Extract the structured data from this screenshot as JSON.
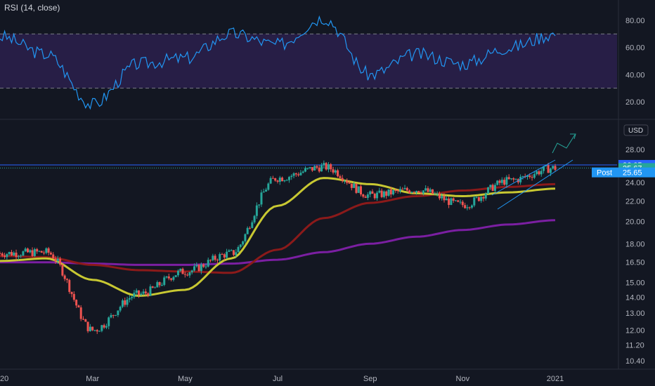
{
  "rsi_panel": {
    "title": "RSI (14, close)",
    "levels": {
      "upper": 70,
      "lower": 30
    },
    "axis_ticks": [
      "80.00",
      "60.00",
      "40.00",
      "20.00"
    ],
    "axis_values": [
      80,
      60,
      40,
      20
    ]
  },
  "price_panel": {
    "currency_badge": "USD",
    "axis_ticks": [
      "28.00",
      "26.00",
      "24.00",
      "22.00",
      "20.00",
      "18.00",
      "16.50",
      "15.00",
      "14.00",
      "13.00",
      "12.00",
      "11.20",
      "10.40"
    ],
    "axis_values": [
      28,
      26,
      24,
      22,
      20,
      18,
      16.5,
      15,
      14,
      13,
      12,
      11.2,
      10.4
    ],
    "price_badges": [
      {
        "label": "",
        "value": "26.05",
        "color": "#2962ff"
      },
      {
        "label": "",
        "value": "25.67",
        "color": "#26a69a"
      },
      {
        "label": "Post",
        "value": "25.65",
        "color": "#2196f3"
      }
    ],
    "time_labels": [
      "2020",
      "Mar",
      "May",
      "Jul",
      "Sep",
      "Nov",
      "2021"
    ]
  },
  "colors": {
    "background": "#131722",
    "up": "#26a69a",
    "down": "#ef5350",
    "ma_fast": "#c8c832",
    "ma_mid": "#8b1a1a",
    "ma_slow": "#7b1fa2",
    "rsi_line": "#2196f3",
    "rsi_band": "#2a1f4a",
    "channel": "#2196f3"
  },
  "chart_data": [
    {
      "type": "line",
      "title": "RSI (14, close)",
      "x": [
        "2020-01",
        "2020-02",
        "2020-03",
        "2020-04",
        "2020-05",
        "2020-06",
        "2020-07",
        "2020-08",
        "2020-09",
        "2020-10",
        "2020-11",
        "2020-12",
        "2021-01"
      ],
      "series": [
        {
          "name": "RSI (14, close)",
          "values": [
            68,
            55,
            18,
            48,
            52,
            70,
            62,
            82,
            40,
            55,
            48,
            60,
            70
          ]
        }
      ],
      "ylim": [
        10,
        90
      ]
    },
    {
      "type": "line",
      "xlabel": "",
      "ylabel": "",
      "y_scale": "log",
      "ylim": [
        10.2,
        28.5
      ],
      "x": [
        "2020-01",
        "2020-02",
        "2020-03",
        "2020-04",
        "2020-05",
        "2020-06",
        "2020-07",
        "2020-08",
        "2020-09",
        "2020-10",
        "2020-11",
        "2020-12",
        "2021-01"
      ],
      "series": [
        {
          "name": "",
          "role": "close",
          "values": [
            17.2,
            17.3,
            12.0,
            14.2,
            15.8,
            17.2,
            24.5,
            25.8,
            22.6,
            23.2,
            21.6,
            24.2,
            25.67
          ]
        },
        {
          "name": "",
          "role": "ma_fast",
          "values": [
            16.6,
            16.8,
            15.2,
            14.1,
            14.5,
            16.8,
            21.5,
            24.5,
            23.8,
            22.8,
            22.5,
            22.9,
            23.3
          ]
        },
        {
          "name": "",
          "role": "ma_mid",
          "values": [
            17.0,
            16.9,
            16.3,
            15.9,
            15.8,
            15.7,
            17.5,
            20.3,
            21.8,
            22.5,
            23.1,
            23.5,
            23.8
          ]
        },
        {
          "name": "",
          "role": "ma_slow",
          "values": [
            16.5,
            16.5,
            16.4,
            16.3,
            16.3,
            16.4,
            16.7,
            17.3,
            18.0,
            18.6,
            19.2,
            19.7,
            20.1
          ]
        }
      ],
      "horizontal_lines": [
        26.05,
        25.67
      ]
    }
  ]
}
